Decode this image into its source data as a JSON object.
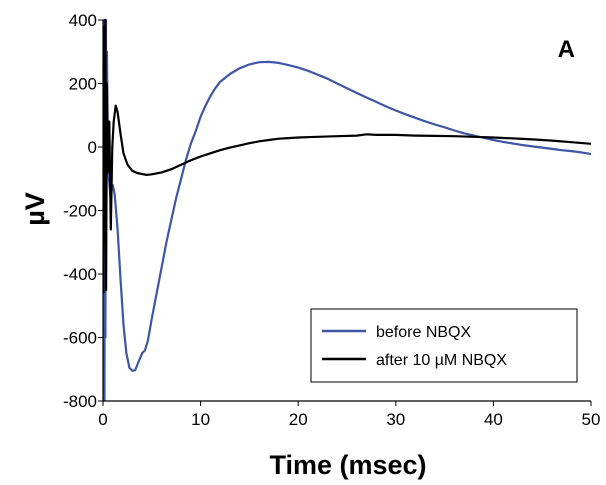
{
  "chart_data": {
    "type": "line",
    "title": "",
    "panel_label": "A",
    "xlabel": "Time (msec)",
    "ylabel": "µV",
    "xlim": [
      0,
      50
    ],
    "ylim": [
      -800,
      400
    ],
    "xticks": [
      0,
      10,
      20,
      30,
      40,
      50
    ],
    "yticks": [
      400,
      200,
      0,
      -200,
      -400,
      -600,
      -800
    ],
    "grid": false,
    "legend_position": "bottom-right",
    "series": [
      {
        "name": "before NBQX",
        "color": "#3d56a6",
        "points": [
          [
            0.05,
            -800
          ],
          [
            0.1,
            400
          ],
          [
            0.15,
            -800
          ],
          [
            0.2,
            400
          ],
          [
            0.25,
            -600
          ],
          [
            0.3,
            400
          ],
          [
            0.35,
            -200
          ],
          [
            0.4,
            300
          ],
          [
            0.5,
            0
          ],
          [
            0.6,
            -100
          ],
          [
            0.75,
            -150
          ],
          [
            0.9,
            -120
          ],
          [
            1.0,
            -120
          ],
          [
            1.2,
            -150
          ],
          [
            1.5,
            -260
          ],
          [
            1.8,
            -420
          ],
          [
            2.1,
            -560
          ],
          [
            2.4,
            -650
          ],
          [
            2.7,
            -695
          ],
          [
            3.0,
            -705
          ],
          [
            3.3,
            -703
          ],
          [
            3.6,
            -680
          ],
          [
            4.0,
            -650
          ],
          [
            4.3,
            -640
          ],
          [
            4.6,
            -610
          ],
          [
            5.0,
            -540
          ],
          [
            5.5,
            -460
          ],
          [
            6.0,
            -380
          ],
          [
            6.5,
            -300
          ],
          [
            7.0,
            -230
          ],
          [
            7.5,
            -160
          ],
          [
            8.0,
            -100
          ],
          [
            8.5,
            -40
          ],
          [
            9.0,
            10
          ],
          [
            9.5,
            50
          ],
          [
            10.0,
            95
          ],
          [
            10.5,
            130
          ],
          [
            11.0,
            160
          ],
          [
            11.5,
            185
          ],
          [
            12.0,
            205
          ],
          [
            13.0,
            230
          ],
          [
            14.0,
            248
          ],
          [
            15.0,
            260
          ],
          [
            16.0,
            267
          ],
          [
            17.0,
            268
          ],
          [
            18.0,
            265
          ],
          [
            19.0,
            258
          ],
          [
            20.0,
            250
          ],
          [
            21.0,
            240
          ],
          [
            22.0,
            228
          ],
          [
            23.0,
            215
          ],
          [
            24.0,
            200
          ],
          [
            25.0,
            185
          ],
          [
            26.0,
            170
          ],
          [
            27.0,
            156
          ],
          [
            28.0,
            142
          ],
          [
            29.0,
            128
          ],
          [
            30.0,
            115
          ],
          [
            31.0,
            103
          ],
          [
            32.0,
            92
          ],
          [
            33.0,
            81
          ],
          [
            34.0,
            71
          ],
          [
            35.0,
            62
          ],
          [
            36.0,
            52
          ],
          [
            37.0,
            43
          ],
          [
            38.0,
            36
          ],
          [
            39.0,
            29
          ],
          [
            40.0,
            22
          ],
          [
            41.0,
            16
          ],
          [
            42.0,
            11
          ],
          [
            43.0,
            6
          ],
          [
            44.0,
            2
          ],
          [
            45.0,
            -2
          ],
          [
            46.0,
            -6
          ],
          [
            47.0,
            -10
          ],
          [
            48.0,
            -13
          ],
          [
            49.0,
            -17
          ],
          [
            50.0,
            -22
          ]
        ]
      },
      {
        "name": "after 10 µM NBQX",
        "color": "#000000",
        "points": [
          [
            0.05,
            -460
          ],
          [
            0.12,
            380
          ],
          [
            0.18,
            -300
          ],
          [
            0.25,
            400
          ],
          [
            0.32,
            -450
          ],
          [
            0.4,
            200
          ],
          [
            0.5,
            -80
          ],
          [
            0.65,
            80
          ],
          [
            0.8,
            -260
          ],
          [
            0.95,
            0
          ],
          [
            1.1,
            80
          ],
          [
            1.3,
            130
          ],
          [
            1.5,
            110
          ],
          [
            1.8,
            40
          ],
          [
            2.1,
            -20
          ],
          [
            2.5,
            -55
          ],
          [
            3.0,
            -75
          ],
          [
            3.5,
            -82
          ],
          [
            4.0,
            -85
          ],
          [
            4.5,
            -88
          ],
          [
            5.0,
            -86
          ],
          [
            6.0,
            -80
          ],
          [
            7.0,
            -70
          ],
          [
            8.0,
            -56
          ],
          [
            9.0,
            -42
          ],
          [
            10.0,
            -30
          ],
          [
            11.0,
            -20
          ],
          [
            12.0,
            -10
          ],
          [
            13.0,
            -2
          ],
          [
            14.0,
            5
          ],
          [
            15.0,
            12
          ],
          [
            16.0,
            18
          ],
          [
            17.0,
            22
          ],
          [
            18.0,
            26
          ],
          [
            19.0,
            28
          ],
          [
            20.0,
            30
          ],
          [
            22.0,
            32
          ],
          [
            24.0,
            34
          ],
          [
            26.0,
            36
          ],
          [
            27.0,
            40
          ],
          [
            28.0,
            38
          ],
          [
            30.0,
            38
          ],
          [
            32.0,
            36
          ],
          [
            34.0,
            35
          ],
          [
            36.0,
            34
          ],
          [
            38.0,
            32
          ],
          [
            40.0,
            30
          ],
          [
            42.0,
            27
          ],
          [
            44.0,
            24
          ],
          [
            46.0,
            20
          ],
          [
            48.0,
            15
          ],
          [
            50.0,
            10
          ]
        ]
      }
    ]
  }
}
